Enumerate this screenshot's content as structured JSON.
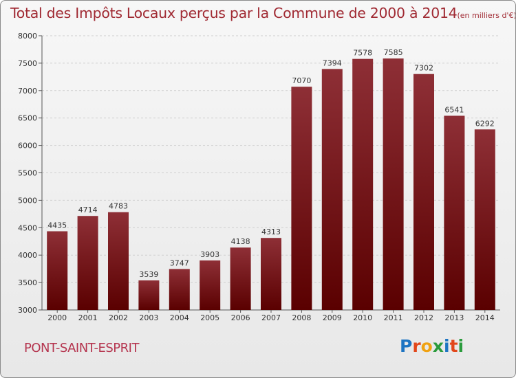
{
  "title": "Total des Impôts Locaux perçus par la Commune de 2000 à 2014",
  "unit_label": "(en milliers d'€)",
  "commune": "PONT-SAINT-ESPRIT",
  "logo": {
    "letters": [
      "P",
      "r",
      "o",
      "x",
      "i",
      "t",
      "i"
    ],
    "colors": [
      "#1d74c2",
      "#e2471b",
      "#f0a213",
      "#2a9b3c",
      "#1d74c2",
      "#e2471b",
      "#2a9b3c"
    ]
  },
  "chart_data": {
    "type": "bar",
    "categories": [
      "2000",
      "2001",
      "2002",
      "2003",
      "2004",
      "2005",
      "2006",
      "2007",
      "2008",
      "2009",
      "2010",
      "2011",
      "2012",
      "2013",
      "2014"
    ],
    "values": [
      4435,
      4714,
      4783,
      3539,
      3747,
      3903,
      4138,
      4313,
      7070,
      7394,
      7578,
      7585,
      7302,
      6541,
      6292
    ],
    "ylim": [
      3000,
      8000
    ],
    "yticks": [
      3000,
      3500,
      4000,
      4500,
      5000,
      5500,
      6000,
      6500,
      7000,
      7500,
      8000
    ],
    "grid": true,
    "bar_color_top": "#8e2f36",
    "bar_color_bottom": "#5a0000"
  }
}
